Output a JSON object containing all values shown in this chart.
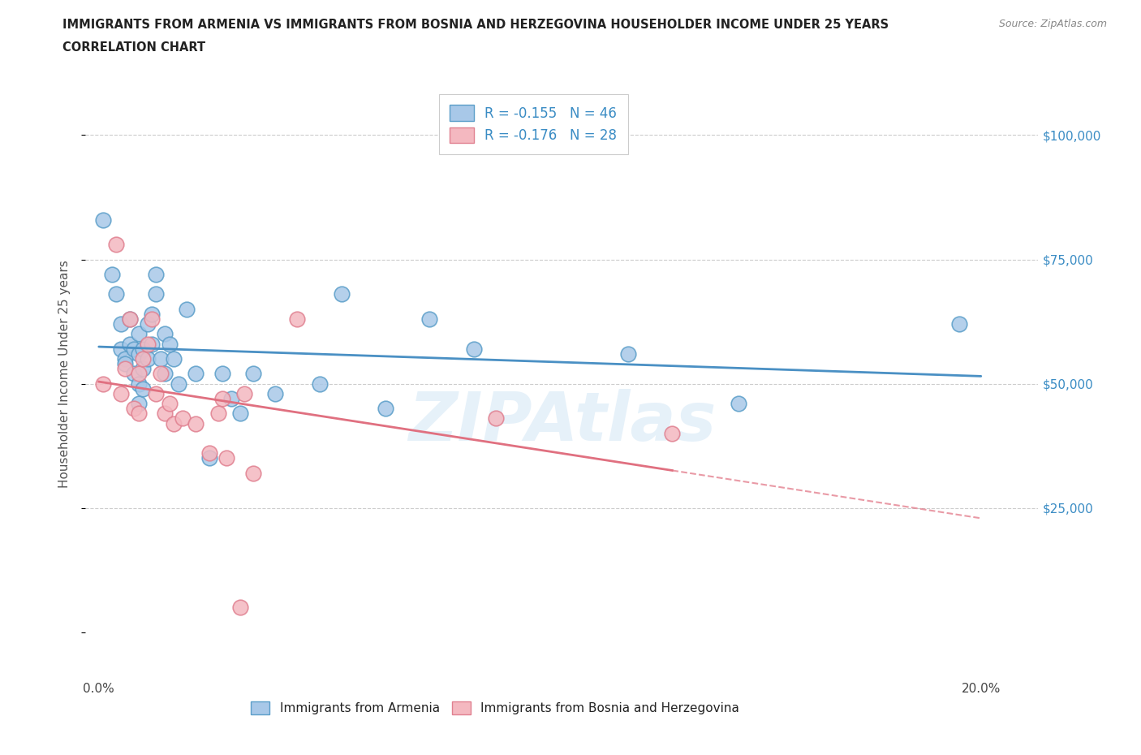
{
  "title_line1": "IMMIGRANTS FROM ARMENIA VS IMMIGRANTS FROM BOSNIA AND HERZEGOVINA HOUSEHOLDER INCOME UNDER 25 YEARS",
  "title_line2": "CORRELATION CHART",
  "source_text": "Source: ZipAtlas.com",
  "ylabel": "Householder Income Under 25 years",
  "legend_label1": "Immigrants from Armenia",
  "legend_label2": "Immigrants from Bosnia and Herzegovina",
  "r1": -0.155,
  "n1": 46,
  "r2": -0.176,
  "n2": 28,
  "color1": "#a8c8e8",
  "color2": "#f4b8c0",
  "color1_edge": "#5b9ec9",
  "color2_edge": "#e08090",
  "line1_color": "#4a90c4",
  "line2_color": "#e07080",
  "background_color": "#ffffff",
  "xlim": [
    -0.003,
    0.213
  ],
  "ylim": [
    -8000,
    112000
  ],
  "yticks": [
    0,
    25000,
    50000,
    75000,
    100000
  ],
  "ytick_labels": [
    "",
    "$25,000",
    "$50,000",
    "$75,000",
    "$100,000"
  ],
  "xticks": [
    0.0,
    0.05,
    0.1,
    0.15,
    0.2
  ],
  "xtick_labels": [
    "0.0%",
    "",
    "",
    "",
    "20.0%"
  ],
  "watermark": "ZIPAtlas",
  "armenia_x": [
    0.001,
    0.003,
    0.004,
    0.005,
    0.005,
    0.006,
    0.006,
    0.007,
    0.007,
    0.008,
    0.008,
    0.009,
    0.009,
    0.009,
    0.009,
    0.01,
    0.01,
    0.01,
    0.011,
    0.011,
    0.012,
    0.012,
    0.013,
    0.013,
    0.014,
    0.015,
    0.015,
    0.016,
    0.017,
    0.018,
    0.02,
    0.022,
    0.025,
    0.028,
    0.03,
    0.032,
    0.035,
    0.04,
    0.05,
    0.055,
    0.065,
    0.075,
    0.085,
    0.12,
    0.145,
    0.195
  ],
  "armenia_y": [
    83000,
    72000,
    68000,
    62000,
    57000,
    55000,
    54000,
    63000,
    58000,
    57000,
    52000,
    60000,
    56000,
    50000,
    46000,
    57000,
    53000,
    49000,
    62000,
    55000,
    64000,
    58000,
    72000,
    68000,
    55000,
    60000,
    52000,
    58000,
    55000,
    50000,
    65000,
    52000,
    35000,
    52000,
    47000,
    44000,
    52000,
    48000,
    50000,
    68000,
    45000,
    63000,
    57000,
    56000,
    46000,
    62000
  ],
  "bosnia_x": [
    0.001,
    0.004,
    0.005,
    0.006,
    0.007,
    0.008,
    0.009,
    0.009,
    0.01,
    0.011,
    0.012,
    0.013,
    0.014,
    0.015,
    0.016,
    0.017,
    0.019,
    0.022,
    0.025,
    0.027,
    0.028,
    0.029,
    0.032,
    0.033,
    0.035,
    0.045,
    0.09,
    0.13
  ],
  "bosnia_y": [
    50000,
    78000,
    48000,
    53000,
    63000,
    45000,
    44000,
    52000,
    55000,
    58000,
    63000,
    48000,
    52000,
    44000,
    46000,
    42000,
    43000,
    42000,
    36000,
    44000,
    47000,
    35000,
    5000,
    48000,
    32000,
    63000,
    43000,
    40000
  ]
}
